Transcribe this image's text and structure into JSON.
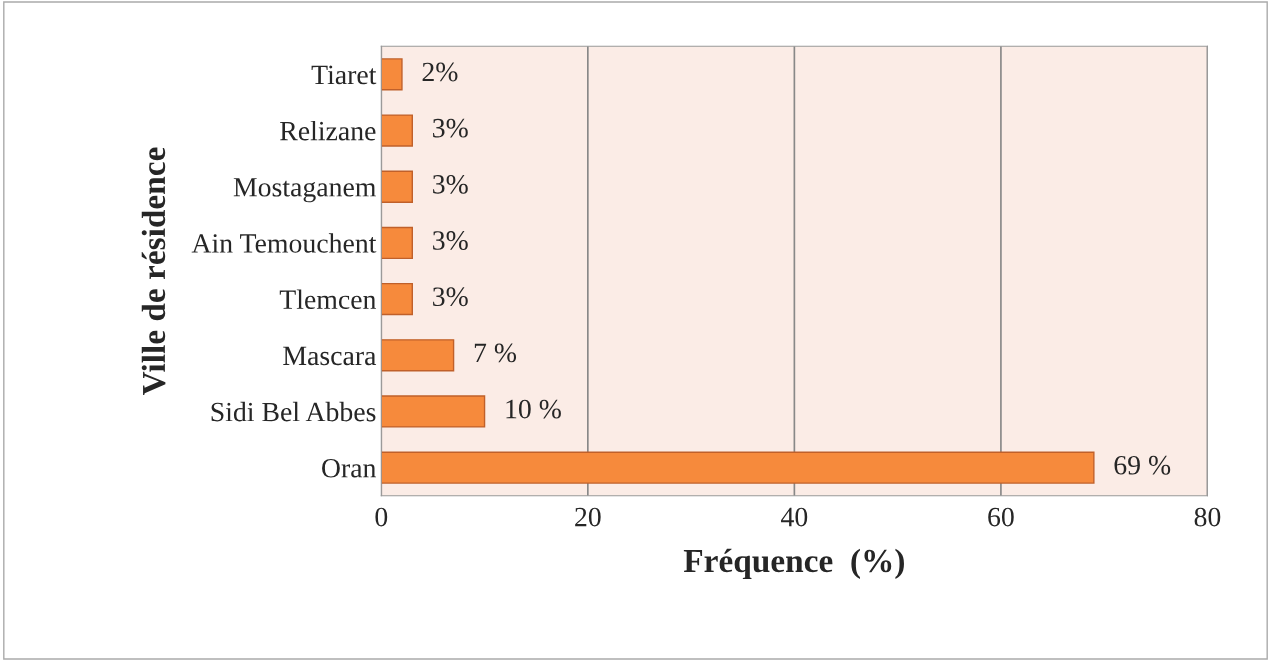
{
  "chart_data": {
    "type": "bar",
    "orientation": "horizontal",
    "xlabel": "Fréquence  (%)",
    "ylabel": "Ville de résidence",
    "categories": [
      "Tiaret",
      "Relizane",
      "Mostaganem",
      "Ain Temouchent",
      "Tlemcen",
      "Mascara",
      "Sidi Bel Abbes",
      "Oran"
    ],
    "values": [
      2,
      3,
      3,
      3,
      3,
      7,
      10,
      69
    ],
    "value_labels": [
      "2%",
      "3%",
      "3%",
      "3%",
      "3%",
      "7 %",
      "10 %",
      "69 %"
    ],
    "color": "#f68a3c",
    "xlim": [
      0,
      80
    ],
    "xticks": [
      0,
      20,
      40,
      60,
      80
    ],
    "grid": "x"
  }
}
